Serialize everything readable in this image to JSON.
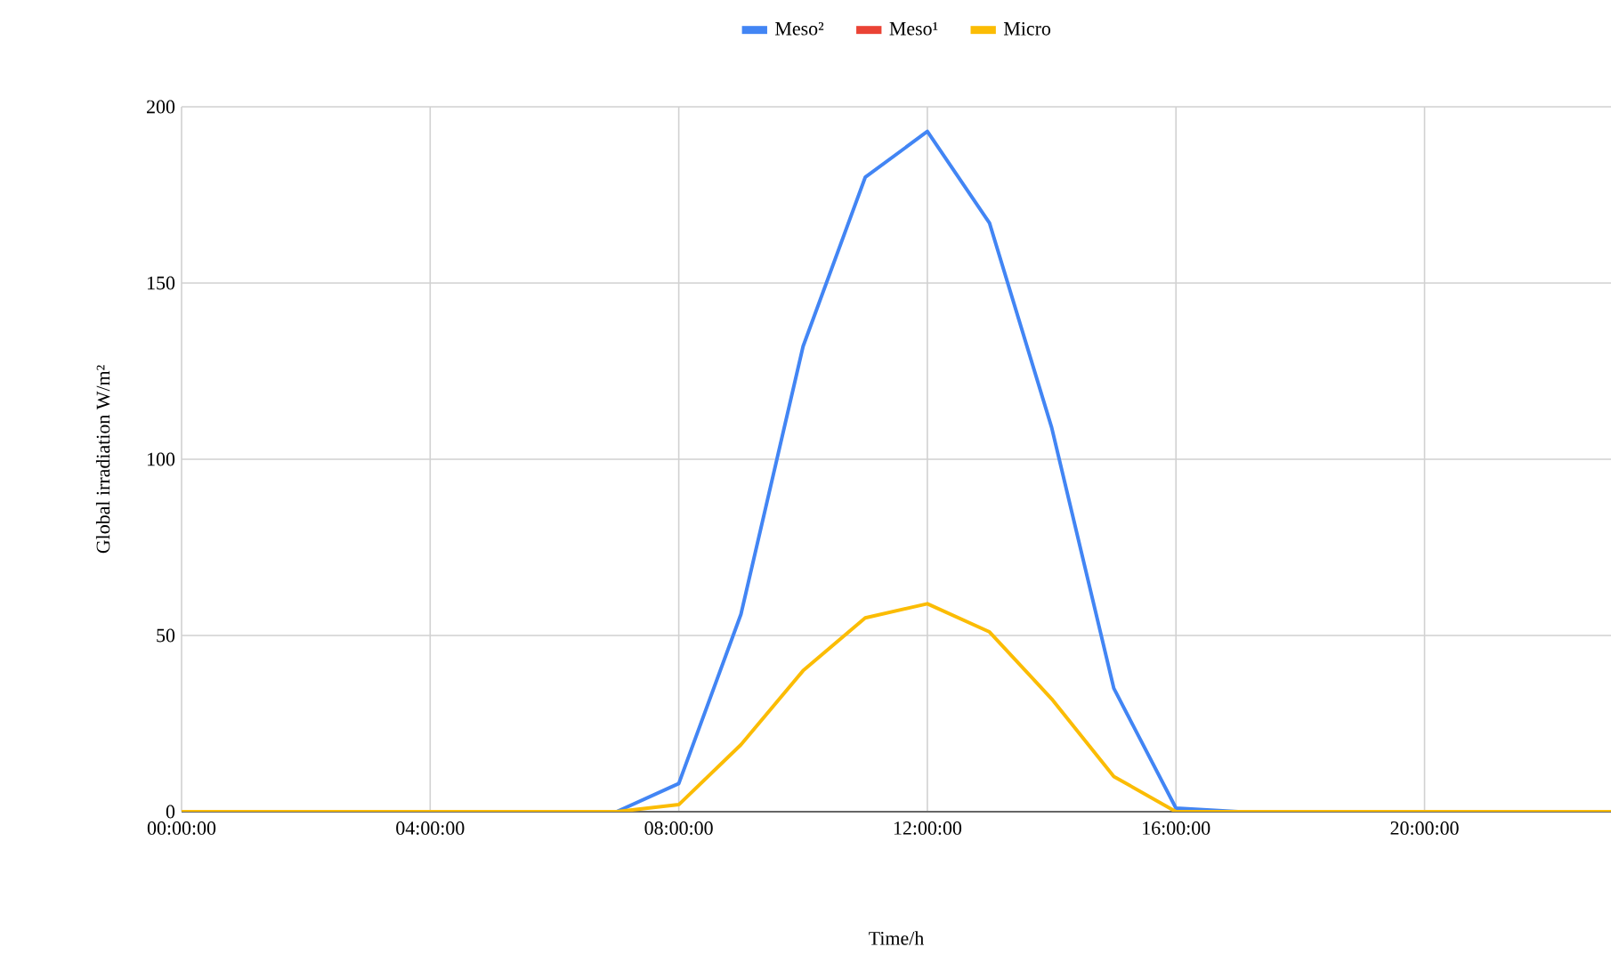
{
  "chart_data": {
    "type": "line",
    "xlabel": "Time/h",
    "ylabel": "Global irradiation W/m²",
    "x": [
      0,
      1,
      2,
      3,
      4,
      5,
      6,
      7,
      8,
      9,
      10,
      11,
      12,
      13,
      14,
      15,
      16,
      17,
      18,
      19,
      20,
      21,
      22,
      23
    ],
    "series": [
      {
        "name": "Meso²",
        "color": "#4285f4",
        "values": [
          null,
          null,
          null,
          null,
          null,
          null,
          null,
          0,
          8,
          56,
          132,
          180,
          193,
          167,
          109,
          35,
          1,
          0,
          null,
          null,
          null,
          null,
          null,
          null
        ]
      },
      {
        "name": "Meso¹",
        "color": "#ea4335",
        "values": [
          null,
          null,
          null,
          null,
          null,
          null,
          null,
          null,
          null,
          null,
          null,
          null,
          null,
          null,
          null,
          null,
          null,
          null,
          null,
          null,
          null,
          null,
          null,
          null
        ]
      },
      {
        "name": "Micro",
        "color": "#fbbc04",
        "values": [
          0,
          0,
          0,
          0,
          0,
          0,
          0,
          0,
          2,
          19,
          40,
          55,
          59,
          51,
          32,
          10,
          0,
          0,
          0,
          0,
          0,
          0,
          0,
          0
        ]
      }
    ],
    "xlim": [
      0,
      23
    ],
    "ylim": [
      0,
      200
    ],
    "xticks": [
      {
        "value": 0,
        "label": "00:00:00"
      },
      {
        "value": 4,
        "label": "04:00:00"
      },
      {
        "value": 8,
        "label": "08:00:00"
      },
      {
        "value": 12,
        "label": "12:00:00"
      },
      {
        "value": 16,
        "label": "16:00:00"
      },
      {
        "value": 20,
        "label": "20:00:00"
      }
    ],
    "yticks": [
      0,
      50,
      100,
      150,
      200
    ],
    "grid": true,
    "legend": "top"
  }
}
